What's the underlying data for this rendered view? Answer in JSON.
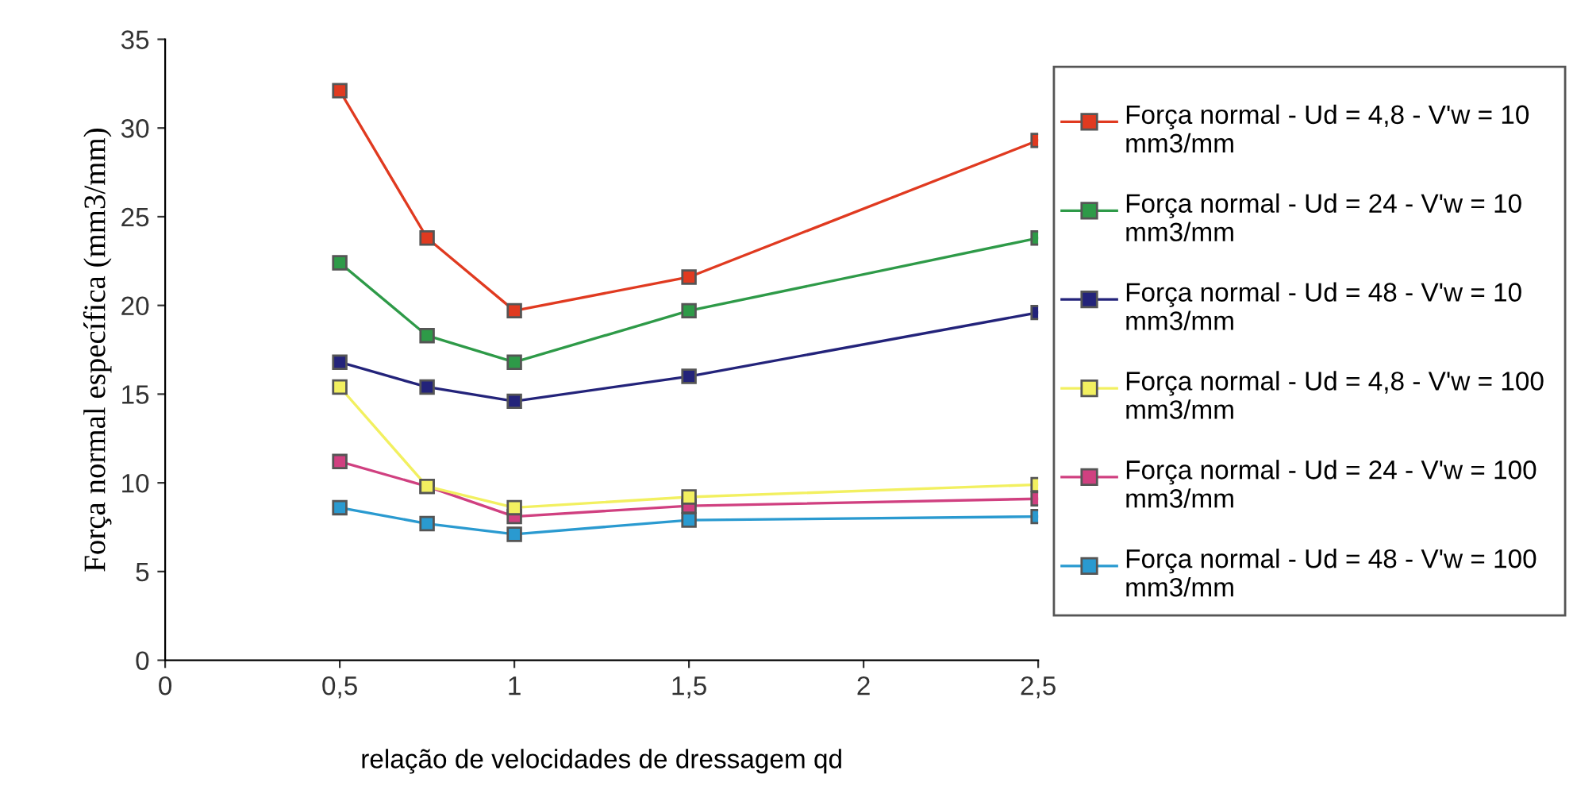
{
  "chart_data": {
    "type": "line",
    "xlabel": "relação de velocidades de dressagem qd",
    "ylabel": "Força normal específica (mm3/mm)",
    "x": [
      0.5,
      0.75,
      1,
      1.5,
      2.5
    ],
    "xlim": [
      0,
      2.5
    ],
    "xticks": [
      {
        "value": 0,
        "label": "0"
      },
      {
        "value": 0.5,
        "label": "0,5"
      },
      {
        "value": 1,
        "label": "1"
      },
      {
        "value": 1.5,
        "label": "1,5"
      },
      {
        "value": 2,
        "label": "2"
      },
      {
        "value": 2.5,
        "label": "2,5"
      }
    ],
    "ylim": [
      0,
      35
    ],
    "yticks": [
      0,
      5,
      10,
      15,
      20,
      25,
      30,
      35
    ],
    "marker": "square",
    "line_style": "solid",
    "grid": false,
    "legend": "right",
    "series": [
      {
        "name": "Força normal - Ud = 4,8 - V'w = 10 mm3/mm",
        "color": "#e03a20",
        "values": [
          32.1,
          23.8,
          19.7,
          21.6,
          29.3
        ]
      },
      {
        "name": "Força normal - Ud = 24 - V'w = 10 mm3/mm",
        "color": "#2e9a48",
        "values": [
          22.4,
          18.3,
          16.8,
          19.7,
          23.8
        ]
      },
      {
        "name": "Força normal - Ud = 48 - V'w = 10 mm3/mm",
        "color": "#23237a",
        "values": [
          16.8,
          15.4,
          14.6,
          16.0,
          19.6
        ]
      },
      {
        "name": "Força normal - Ud = 4,8 - V'w = 100 mm3/mm",
        "color": "#f2f060",
        "values": [
          15.4,
          9.8,
          8.6,
          9.2,
          9.9
        ]
      },
      {
        "name": "Força normal - Ud = 24 - V'w = 100 mm3/mm",
        "color": "#d04080",
        "values": [
          11.2,
          9.8,
          8.1,
          8.7,
          9.1
        ]
      },
      {
        "name": "Força normal - Ud = 48 - V'w = 100 mm3/mm",
        "color": "#2a9ad0",
        "values": [
          8.6,
          7.7,
          7.1,
          7.9,
          8.1
        ]
      }
    ]
  }
}
